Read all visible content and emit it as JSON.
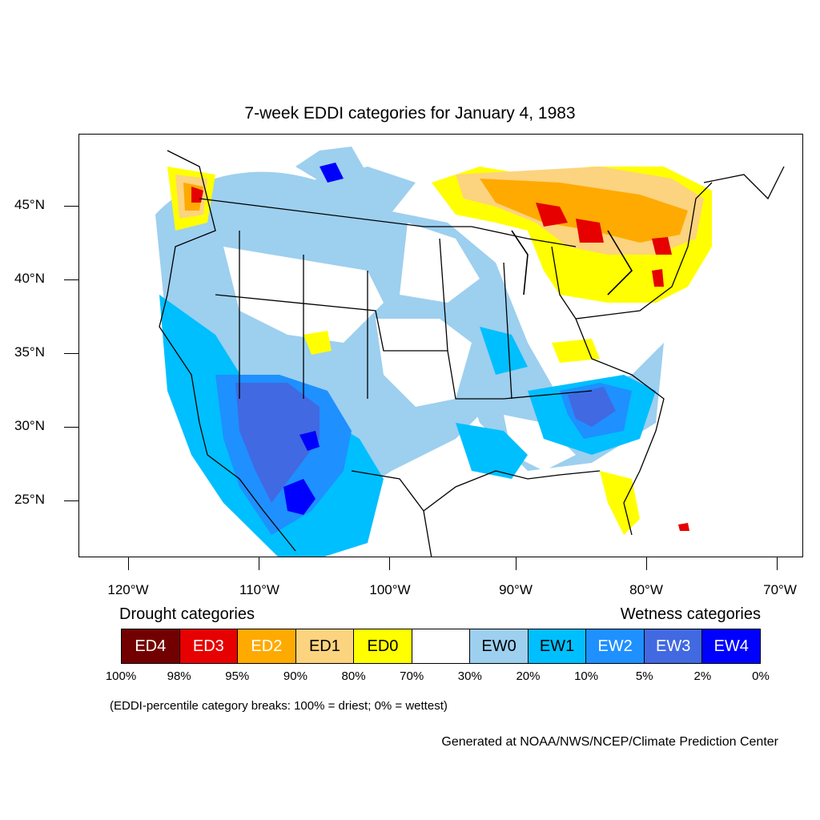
{
  "title": "7-week EDDI categories for January 4, 1983",
  "map": {
    "lat_labels": [
      "45°N",
      "40°N",
      "35°N",
      "30°N",
      "25°N"
    ],
    "lon_labels": [
      "120°W",
      "110°W",
      "100°W",
      "90°W",
      "80°W",
      "70°W"
    ]
  },
  "legend": {
    "drought_heading": "Drought categories",
    "wetness_heading": "Wetness categories",
    "categories": [
      {
        "label": "ED4",
        "color": "#730000"
      },
      {
        "label": "ED3",
        "color": "#e60000"
      },
      {
        "label": "ED2",
        "color": "#ffaa00"
      },
      {
        "label": "ED1",
        "color": "#fcd37f"
      },
      {
        "label": "ED0",
        "color": "#ffff00"
      },
      {
        "label": "",
        "color": "#ffffff"
      },
      {
        "label": "EW0",
        "color": "#9dcfef"
      },
      {
        "label": "EW1",
        "color": "#00bfff"
      },
      {
        "label": "EW2",
        "color": "#1e90ff"
      },
      {
        "label": "EW3",
        "color": "#4169e1"
      },
      {
        "label": "EW4",
        "color": "#0000ff"
      }
    ],
    "percentiles": [
      "100%",
      "98%",
      "95%",
      "90%",
      "80%",
      "70%",
      "30%",
      "20%",
      "10%",
      "5%",
      "2%",
      "0%"
    ],
    "note": "(EDDI-percentile category breaks: 100% = driest; 0% = wettest)"
  },
  "credit": "Generated at NOAA/NWS/NCEP/Climate Prediction Center"
}
